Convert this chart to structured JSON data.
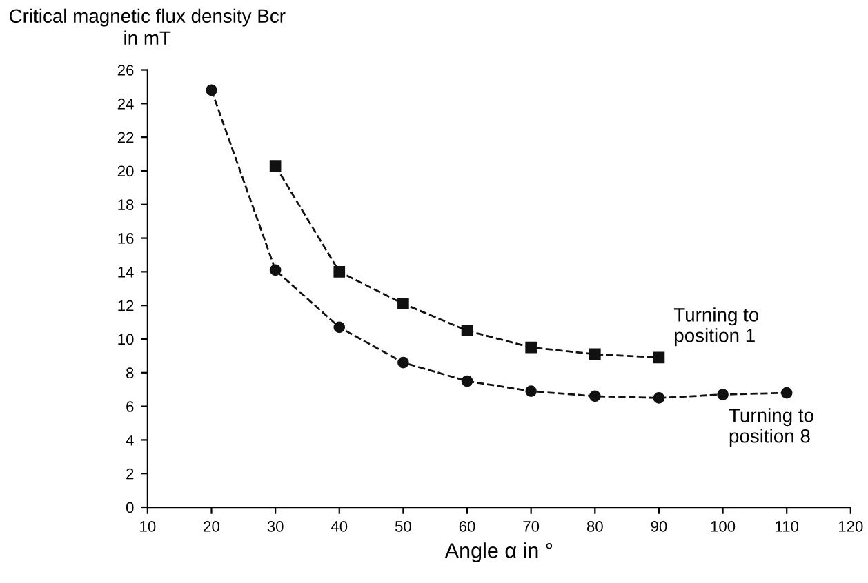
{
  "chart_data": {
    "type": "line",
    "xlabel": "Angle α in °",
    "ylabel": "Critical magnetic flux density Bcr\nin mT",
    "xlim": [
      10,
      120
    ],
    "xticks": [
      10,
      20,
      30,
      40,
      50,
      60,
      70,
      80,
      90,
      100,
      110,
      120
    ],
    "ylim": [
      0,
      26
    ],
    "yticks": [
      0,
      2,
      4,
      6,
      8,
      10,
      12,
      14,
      16,
      18,
      20,
      22,
      24,
      26
    ],
    "grid": false,
    "legend": false,
    "line_style": "dashed",
    "series": [
      {
        "color": "#111111",
        "marker": "square",
        "x": [
          30,
          40,
          50,
          60,
          70,
          80,
          90
        ],
        "values": [
          20.3,
          14.0,
          12.1,
          10.5,
          9.5,
          9.1,
          8.9
        ]
      },
      {
        "color": "#111111",
        "marker": "circle",
        "x": [
          20,
          30,
          40,
          50,
          60,
          70,
          80,
          90,
          100,
          110
        ],
        "values": [
          24.8,
          14.1,
          10.7,
          8.6,
          7.5,
          6.9,
          6.6,
          6.5,
          6.7,
          6.8
        ]
      }
    ],
    "annotations": [
      {
        "text": "Turning to\nposition 1",
        "x": 90,
        "y": 8.9
      },
      {
        "text": "Turning to\nposition 8",
        "x": 110,
        "y": 6.8
      }
    ]
  }
}
